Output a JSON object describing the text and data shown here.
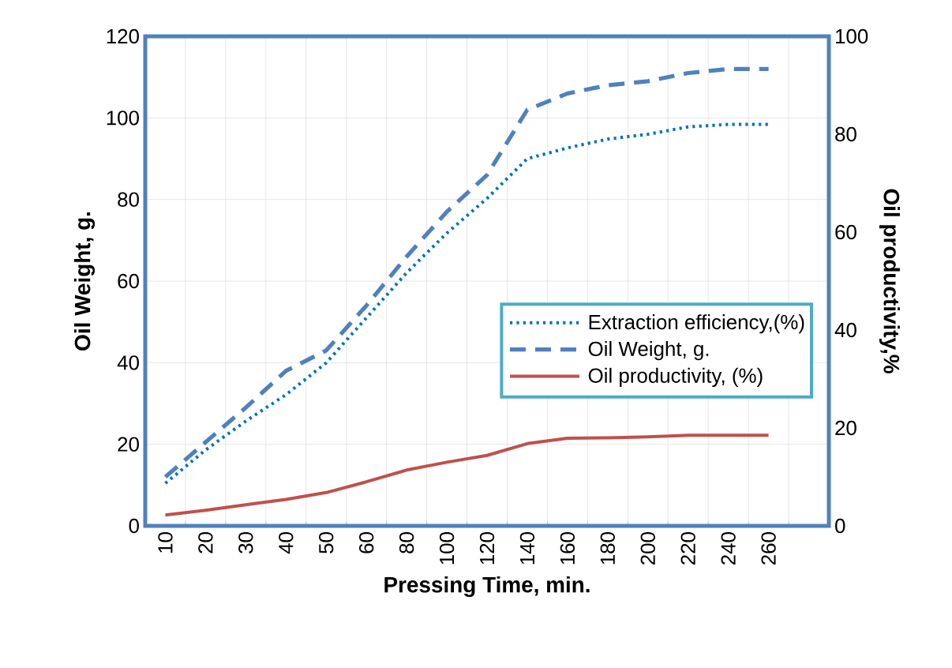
{
  "chart_data": {
    "type": "line",
    "xlabel": "Pressing Time, min.",
    "ylabel": "Oil Weight, g.",
    "y2label": "Oil productivity,%",
    "categories": [
      "10",
      "20",
      "30",
      "40",
      "50",
      "60",
      "80",
      "100",
      "120",
      "140",
      "160",
      "180",
      "200",
      "220",
      "240",
      "260",
      null
    ],
    "ylim": [
      0,
      120
    ],
    "yticks": [
      0,
      20,
      40,
      60,
      80,
      100,
      120
    ],
    "y2lim": [
      0,
      100
    ],
    "y2ticks": [
      0,
      20,
      40,
      60,
      80,
      100
    ],
    "grid": true,
    "legend": "right",
    "marker": "none",
    "series": [
      {
        "name": "Extraction efficiency,(%)",
        "color": "#0070c0",
        "line_style": "dotted",
        "axis": "y2",
        "values": [
          8.7,
          15.5,
          21.4,
          26.8,
          33.3,
          42.5,
          51.7,
          59.8,
          66.9,
          75,
          77.2,
          79,
          80,
          81.5,
          82,
          82,
          null
        ]
      },
      {
        "name": "Oil Weight, g.",
        "color": "#4f81bd",
        "line_style": "dashed",
        "axis": "y",
        "values": [
          12,
          20.5,
          29,
          38,
          43,
          54,
          66,
          77,
          86,
          102,
          106,
          108,
          109,
          111,
          112,
          112,
          null
        ]
      },
      {
        "name": "Oil productivity, (%)",
        "color": "#c0504d",
        "line_style": "solid",
        "axis": "y2",
        "values": [
          2.2,
          3.2,
          4.3,
          5.4,
          6.8,
          9.0,
          11.4,
          13.0,
          14.4,
          16.8,
          17.9,
          18.0,
          18.2,
          18.5,
          18.5,
          18.5,
          null
        ]
      }
    ]
  }
}
